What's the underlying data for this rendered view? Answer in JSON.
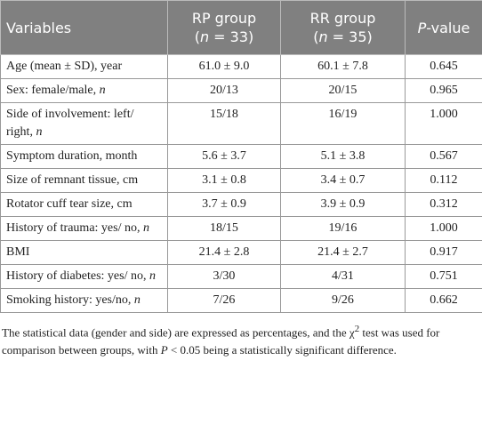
{
  "table": {
    "header": [
      [
        {
          "text": "Variables"
        }
      ],
      [
        {
          "text": "RP group"
        },
        {
          "text": "(",
          "br": true
        },
        {
          "text": "n",
          "italic": true
        },
        {
          "text": " = 33)"
        }
      ],
      [
        {
          "text": "RR group"
        },
        {
          "text": "(",
          "br": true
        },
        {
          "text": "n",
          "italic": true
        },
        {
          "text": " = 35)"
        }
      ],
      [
        {
          "text": "P",
          "italic": true
        },
        {
          "text": "-value"
        }
      ]
    ],
    "rows": [
      {
        "variable": [
          {
            "text": "Age (mean ± SD), year"
          }
        ],
        "rp": "61.0 ± 9.0",
        "rr": "60.1 ± 7.8",
        "p": "0.645"
      },
      {
        "variable": [
          {
            "text": "Sex: female/male, "
          },
          {
            "text": "n",
            "italic": true
          }
        ],
        "rp": "20/13",
        "rr": "20/15",
        "p": "0.965"
      },
      {
        "variable": [
          {
            "text": "Side of involvement: left/ right, "
          },
          {
            "text": "n",
            "italic": true
          }
        ],
        "rp": "15/18",
        "rr": "16/19",
        "p": "1.000"
      },
      {
        "variable": [
          {
            "text": "Symptom duration, month"
          }
        ],
        "rp": "5.6 ± 3.7",
        "rr": "5.1 ± 3.8",
        "p": "0.567"
      },
      {
        "variable": [
          {
            "text": "Size of remnant tissue, cm"
          }
        ],
        "rp": "3.1 ± 0.8",
        "rr": "3.4 ± 0.7",
        "p": "0.112"
      },
      {
        "variable": [
          {
            "text": "Rotator cuff tear size, cm"
          }
        ],
        "rp": "3.7 ± 0.9",
        "rr": "3.9 ± 0.9",
        "p": "0.312"
      },
      {
        "variable": [
          {
            "text": "History of trauma: yes/ no, "
          },
          {
            "text": "n",
            "italic": true
          }
        ],
        "rp": "18/15",
        "rr": "19/16",
        "p": "1.000"
      },
      {
        "variable": [
          {
            "text": "BMI"
          }
        ],
        "rp": "21.4 ± 2.8",
        "rr": "21.4 ± 2.7",
        "p": "0.917"
      },
      {
        "variable": [
          {
            "text": "History of diabetes: yes/ no, "
          },
          {
            "text": "n",
            "italic": true
          }
        ],
        "rp": "3/30",
        "rr": "4/31",
        "p": "0.751"
      },
      {
        "variable": [
          {
            "text": "Smoking history: yes/no, "
          },
          {
            "text": "n",
            "italic": true
          }
        ],
        "rp": "7/26",
        "rr": "9/26",
        "p": "0.662"
      }
    ],
    "footnote": [
      {
        "text": "The statistical data (gender and side) are expressed as percentages, and the "
      },
      {
        "text": "χ"
      },
      {
        "text": "2",
        "sup": true
      },
      {
        "text": " test was used for comparison between groups, with "
      },
      {
        "text": "P",
        "italic": true
      },
      {
        "text": " < 0.05 being a statistically significant difference."
      }
    ]
  }
}
